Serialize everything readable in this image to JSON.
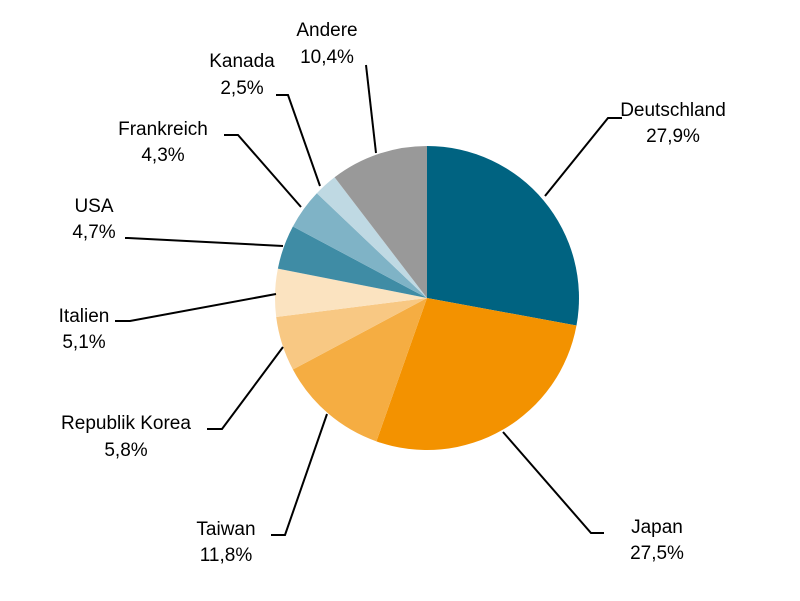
{
  "chart_data": {
    "type": "pie",
    "title": "",
    "start_angle_deg": 0,
    "direction": "clockwise",
    "categories": [
      "Deutschland",
      "Japan",
      "Taiwan",
      "Republik Korea",
      "Italien",
      "USA",
      "Frankreich",
      "Kanada",
      "Andere"
    ],
    "values": [
      27.9,
      27.5,
      11.8,
      5.8,
      5.1,
      4.7,
      4.3,
      2.5,
      10.4
    ],
    "value_labels": [
      "27,9%",
      "27,5%",
      "11,8%",
      "5,8%",
      "5,1%",
      "4,7%",
      "4,3%",
      "2,5%",
      "10,4%"
    ],
    "colors": [
      "#006381",
      "#f39200",
      "#f5ad42",
      "#f8c883",
      "#fbe3c0",
      "#3f8ca5",
      "#7fb3c6",
      "#bfd9e3",
      "#999999"
    ],
    "legend": "none",
    "labels": "outside-with-leader-lines"
  }
}
